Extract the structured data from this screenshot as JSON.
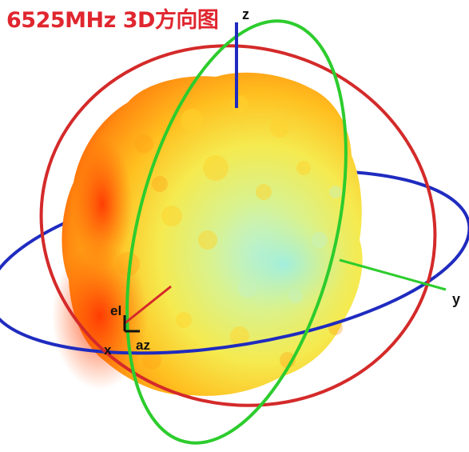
{
  "title": "6525MHz 3D方向图",
  "axes": {
    "z": "z",
    "y": "y",
    "x": "x",
    "el": "el",
    "az": "az"
  },
  "colors": {
    "title": "#e0262f",
    "elevation_circle": "#d42a2a",
    "azimuth_circle": "#1f2bbf",
    "third_circle": "#2dcc2d",
    "z_axis": "#1f2bbf",
    "y_axis": "#2dcc2d",
    "x_axis": "#d42a2a",
    "pattern_max": "#ff4000",
    "pattern_mid": "#ffb000",
    "pattern_low": "#f2f060",
    "pattern_min": "#a8f0d8"
  }
}
